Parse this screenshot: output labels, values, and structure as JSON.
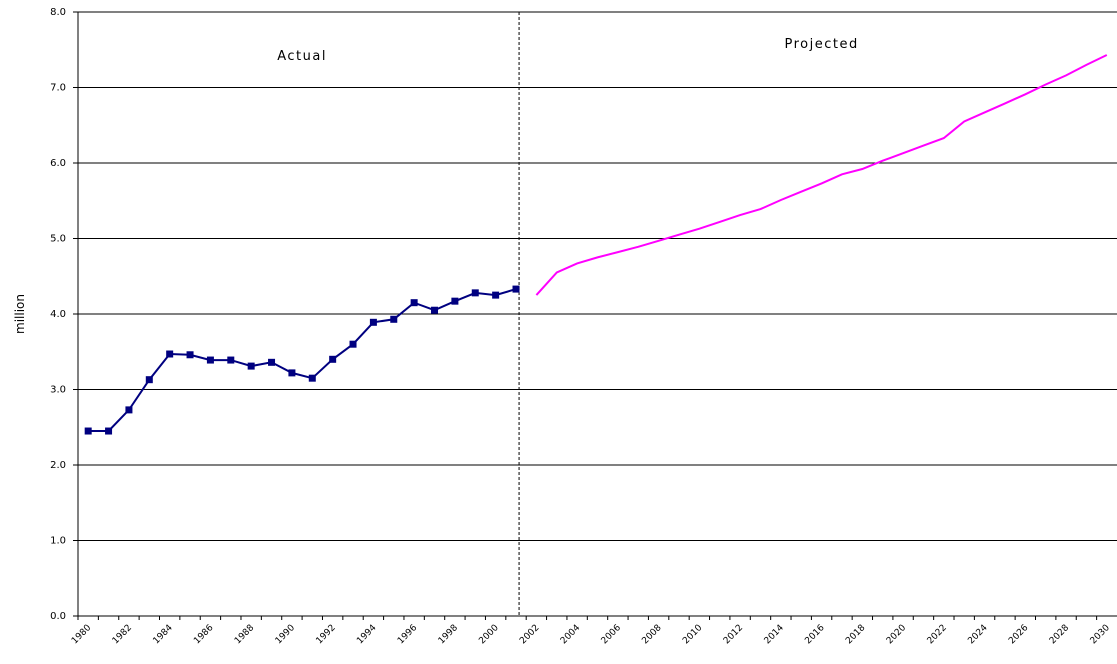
{
  "chart_data": {
    "type": "line",
    "y_label": "million",
    "categories": [
      "1980",
      null,
      "1982",
      null,
      "1984",
      null,
      "1986",
      null,
      "1988",
      null,
      "1990",
      null,
      "1992",
      null,
      "1994",
      null,
      "1996",
      null,
      "1998",
      null,
      "2000",
      null,
      "2002",
      null,
      "2004",
      null,
      "2006",
      null,
      "2008",
      null,
      "2010",
      null,
      "2012",
      null,
      "2014",
      null,
      "2016",
      null,
      "2018",
      null,
      "2020",
      null,
      "2022",
      null,
      "2024",
      null,
      "2026",
      null,
      "2028",
      null,
      "2030"
    ],
    "series": [
      {
        "name": "Actual",
        "color": "#000080",
        "marker": "square",
        "values": [
          2.45,
          2.45,
          2.73,
          3.13,
          3.47,
          3.46,
          3.39,
          3.39,
          3.31,
          3.36,
          3.22,
          3.15,
          3.4,
          3.6,
          3.89,
          3.93,
          4.15,
          4.05,
          4.17,
          4.28,
          4.25,
          4.33,
          null,
          null,
          null,
          null,
          null,
          null,
          null,
          null,
          null,
          null,
          null,
          null,
          null,
          null,
          null,
          null,
          null,
          null,
          null,
          null,
          null,
          null,
          null,
          null,
          null,
          null,
          null,
          null,
          null
        ]
      },
      {
        "name": "Projected",
        "color": "#ff00ff",
        "values": [
          null,
          null,
          null,
          null,
          null,
          null,
          null,
          null,
          null,
          null,
          null,
          null,
          null,
          null,
          null,
          null,
          null,
          null,
          null,
          null,
          null,
          null,
          4.25,
          4.55,
          4.67,
          4.75,
          4.82,
          4.89,
          4.97,
          5.05,
          5.13,
          5.22,
          5.31,
          5.39,
          5.51,
          5.62,
          5.73,
          5.85,
          5.92,
          6.03,
          6.13,
          6.23,
          6.33,
          6.55,
          6.67,
          6.79,
          6.91,
          7.04,
          7.16,
          7.3,
          7.43
        ]
      }
    ],
    "ylim": [
      0,
      8
    ],
    "yticks": [
      {
        "value": 0,
        "label": "0.0"
      },
      {
        "value": 1,
        "label": "1.0"
      },
      {
        "value": 2,
        "label": "2.0"
      },
      {
        "value": 3,
        "label": "3.0"
      },
      {
        "value": 4,
        "label": "4.0"
      },
      {
        "value": 5,
        "label": "5.0"
      },
      {
        "value": 6,
        "label": "6.0"
      },
      {
        "value": 7,
        "label": "7.0"
      },
      {
        "value": 8,
        "label": "8.0"
      }
    ],
    "grid": true
  }
}
